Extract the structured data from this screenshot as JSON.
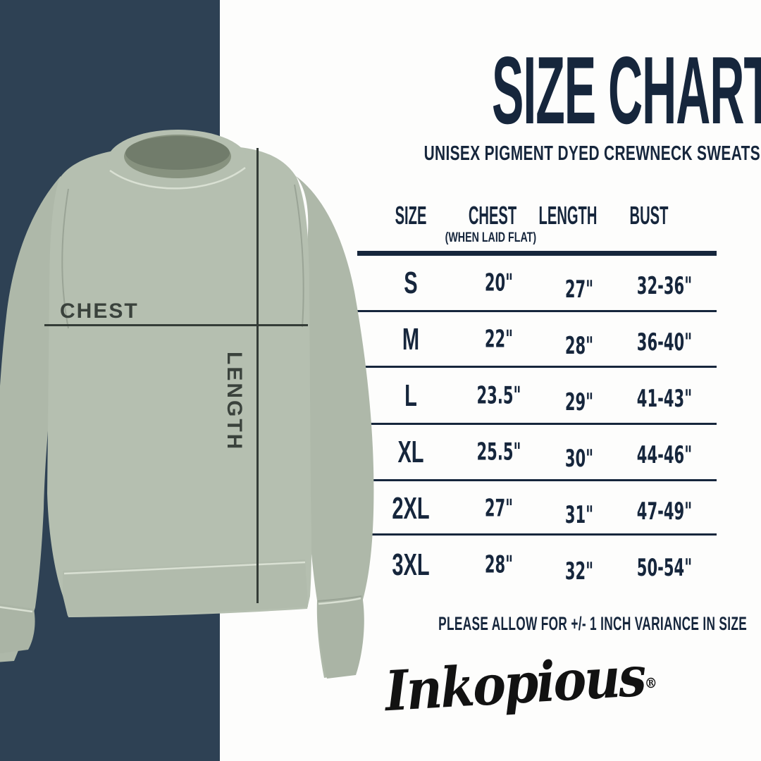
{
  "title": "SIZE CHART",
  "subtitle": "UNISEX PIGMENT DYED CREWNECK SWEATSHIRT",
  "garment": {
    "chest_label": "CHEST",
    "length_label": "LENGTH"
  },
  "table": {
    "columns": [
      "SIZE",
      "CHEST",
      "LENGTH",
      "BUST"
    ],
    "chest_subnote": "(WHEN LAID FLAT)",
    "rows": [
      {
        "size": "S",
        "chest": "20\"",
        "length": "27\"",
        "bust": "32-36\""
      },
      {
        "size": "M",
        "chest": "22\"",
        "length": "28\"",
        "bust": "36-40\""
      },
      {
        "size": "L",
        "chest": "23.5\"",
        "length": "29\"",
        "bust": "41-43\""
      },
      {
        "size": "XL",
        "chest": "25.5\"",
        "length": "30\"",
        "bust": "44-46\""
      },
      {
        "size": "2XL",
        "chest": "27\"",
        "length": "31\"",
        "bust": "47-49\""
      },
      {
        "size": "3XL",
        "chest": "28\"",
        "length": "32\"",
        "bust": "50-54\""
      }
    ]
  },
  "note": "PLEASE ALLOW FOR +/- 1 INCH VARIANCE IN SIZE",
  "brand": {
    "name": "Inkopious",
    "registered": "®"
  },
  "colors": {
    "band": "#2e4154",
    "text_navy": "#16263c",
    "sweatshirt": "#b5bfb0",
    "measure_line": "#343c37",
    "logo_black": "#121212"
  },
  "chart_data": {
    "type": "table",
    "title": "SIZE CHART",
    "subtitle": "UNISEX PIGMENT DYED CREWNECK SWEATSHIRT",
    "columns": [
      "SIZE",
      "CHEST (WHEN LAID FLAT)",
      "LENGTH",
      "BUST"
    ],
    "rows": [
      [
        "S",
        "20\"",
        "27\"",
        "32-36\""
      ],
      [
        "M",
        "22\"",
        "28\"",
        "36-40\""
      ],
      [
        "L",
        "23.5\"",
        "29\"",
        "41-43\""
      ],
      [
        "XL",
        "25.5\"",
        "30\"",
        "44-46\""
      ],
      [
        "2XL",
        "27\"",
        "31\"",
        "47-49\""
      ],
      [
        "3XL",
        "28\"",
        "32\"",
        "50-54\""
      ]
    ],
    "footnote": "PLEASE ALLOW FOR +/- 1 INCH VARIANCE IN SIZE"
  }
}
